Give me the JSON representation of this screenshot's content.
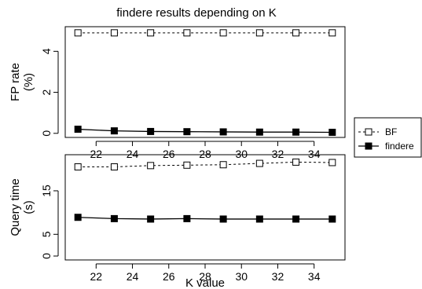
{
  "title": "findere results depending on K",
  "legend": {
    "position": "right",
    "entries": [
      {
        "label": "BF",
        "line": "dashed",
        "marker": "open-square"
      },
      {
        "label": "findere",
        "line": "solid",
        "marker": "filled-square"
      }
    ]
  },
  "chart_data": [
    {
      "type": "line",
      "title": "findere results depending on K",
      "xlabel": "",
      "ylabel": [
        "FP rate",
        "(%)"
      ],
      "x": [
        21,
        23,
        25,
        27,
        29,
        31,
        33,
        35
      ],
      "xticks": [
        "22",
        "24",
        "26",
        "28",
        "30",
        "32",
        "34"
      ],
      "yticks": [
        "0",
        "2",
        "4"
      ],
      "xlim": [
        20.3,
        35.7
      ],
      "ylim": [
        -0.2,
        5.2
      ],
      "series": [
        {
          "name": "BF",
          "values": [
            4.9,
            4.9,
            4.9,
            4.9,
            4.9,
            4.9,
            4.9,
            4.9
          ],
          "line": "dashed",
          "marker": "open-square",
          "color": "#000000"
        },
        {
          "name": "findere",
          "values": [
            0.2,
            0.12,
            0.09,
            0.08,
            0.07,
            0.06,
            0.06,
            0.05
          ],
          "line": "solid",
          "marker": "filled-square",
          "color": "#000000"
        }
      ],
      "grid": false
    },
    {
      "type": "line",
      "xlabel": "K value",
      "ylabel": [
        "Query time",
        "(s)"
      ],
      "x": [
        21,
        23,
        25,
        27,
        29,
        31,
        33,
        35
      ],
      "xticks": [
        "22",
        "24",
        "26",
        "28",
        "30",
        "32",
        "34"
      ],
      "yticks": [
        "0",
        "5",
        "15"
      ],
      "xlim": [
        20.3,
        35.7
      ],
      "ylim": [
        -0.9,
        23.3
      ],
      "series": [
        {
          "name": "BF",
          "values": [
            20.5,
            20.5,
            20.8,
            20.9,
            21.0,
            21.3,
            21.6,
            21.5
          ],
          "line": "dashed",
          "marker": "open-square",
          "color": "#000000"
        },
        {
          "name": "findere",
          "values": [
            8.9,
            8.6,
            8.5,
            8.6,
            8.5,
            8.5,
            8.5,
            8.5
          ],
          "line": "solid",
          "marker": "filled-square",
          "color": "#000000"
        }
      ],
      "grid": false
    }
  ]
}
